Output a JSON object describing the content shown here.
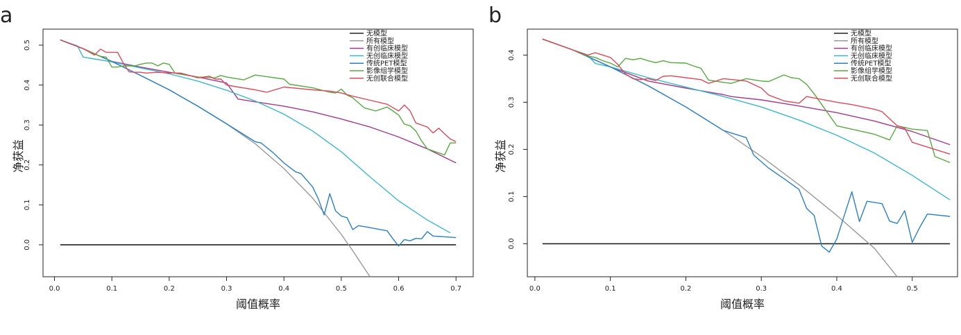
{
  "chart_data": [
    {
      "type": "line",
      "panel_label": "a",
      "xlabel": "阈值概率",
      "ylabel": "净获益",
      "xlim": [
        -0.02,
        0.73
      ],
      "ylim": [
        -0.08,
        0.54
      ],
      "xticks": [
        0.0,
        0.1,
        0.2,
        0.3,
        0.4,
        0.5,
        0.6,
        0.7
      ],
      "yticks": [
        0.0,
        0.1,
        0.2,
        0.3,
        0.4,
        0.5
      ],
      "grid": false,
      "legend_position": "top-right",
      "series": [
        {
          "name": "无模型",
          "color": "#222222",
          "x": [
            0.01,
            0.7
          ],
          "y": [
            0.0,
            0.0
          ]
        },
        {
          "name": "所有模型",
          "color": "#999999",
          "x": [
            0.01,
            0.05,
            0.1,
            0.15,
            0.2,
            0.25,
            0.3,
            0.35,
            0.4,
            0.45,
            0.5,
            0.52,
            0.55
          ],
          "y": [
            0.513,
            0.491,
            0.459,
            0.424,
            0.388,
            0.347,
            0.303,
            0.253,
            0.191,
            0.117,
            0.026,
            -0.015,
            -0.08
          ]
        },
        {
          "name": "有创临床模型",
          "color": "#a23a8b",
          "x": [
            0.01,
            0.05,
            0.1,
            0.15,
            0.2,
            0.25,
            0.3,
            0.32,
            0.35,
            0.4,
            0.45,
            0.5,
            0.55,
            0.6,
            0.65,
            0.7
          ],
          "y": [
            0.513,
            0.491,
            0.459,
            0.445,
            0.432,
            0.42,
            0.405,
            0.365,
            0.358,
            0.347,
            0.333,
            0.315,
            0.295,
            0.27,
            0.24,
            0.205
          ]
        },
        {
          "name": "无创临床模型",
          "color": "#3bb6cc",
          "x": [
            0.01,
            0.04,
            0.05,
            0.1,
            0.15,
            0.2,
            0.25,
            0.3,
            0.35,
            0.4,
            0.45,
            0.5,
            0.55,
            0.6,
            0.65,
            0.69
          ],
          "y": [
            0.513,
            0.498,
            0.47,
            0.458,
            0.443,
            0.428,
            0.41,
            0.387,
            0.36,
            0.327,
            0.285,
            0.233,
            0.17,
            0.11,
            0.062,
            0.03
          ]
        },
        {
          "name": "传统PET模型",
          "color": "#2a7fc6",
          "x": [
            0.01,
            0.05,
            0.1,
            0.15,
            0.2,
            0.25,
            0.3,
            0.35,
            0.36,
            0.38,
            0.4,
            0.42,
            0.43,
            0.45,
            0.46,
            0.47,
            0.48,
            0.49,
            0.5,
            0.51,
            0.52,
            0.53,
            0.55,
            0.58,
            0.59,
            0.6,
            0.61,
            0.62,
            0.63,
            0.64,
            0.65,
            0.66,
            0.7
          ],
          "y": [
            0.513,
            0.491,
            0.459,
            0.424,
            0.388,
            0.347,
            0.303,
            0.258,
            0.255,
            0.232,
            0.205,
            0.183,
            0.178,
            0.145,
            0.115,
            0.075,
            0.128,
            0.085,
            0.072,
            0.068,
            0.038,
            0.048,
            0.043,
            0.035,
            0.015,
            -0.003,
            0.013,
            0.01,
            0.016,
            0.015,
            0.033,
            0.022,
            0.018
          ]
        },
        {
          "name": "影像组学模型",
          "color": "#58a842",
          "x": [
            0.01,
            0.05,
            0.08,
            0.09,
            0.1,
            0.11,
            0.12,
            0.14,
            0.15,
            0.16,
            0.17,
            0.18,
            0.19,
            0.2,
            0.21,
            0.25,
            0.28,
            0.29,
            0.3,
            0.33,
            0.35,
            0.4,
            0.41,
            0.45,
            0.48,
            0.49,
            0.5,
            0.51,
            0.52,
            0.54,
            0.56,
            0.58,
            0.59,
            0.6,
            0.61,
            0.62,
            0.63,
            0.64,
            0.65,
            0.68,
            0.69,
            0.7
          ],
          "y": [
            0.513,
            0.491,
            0.472,
            0.47,
            0.445,
            0.445,
            0.448,
            0.448,
            0.452,
            0.455,
            0.455,
            0.448,
            0.455,
            0.452,
            0.43,
            0.42,
            0.418,
            0.424,
            0.42,
            0.413,
            0.425,
            0.415,
            0.402,
            0.393,
            0.382,
            0.38,
            0.39,
            0.375,
            0.368,
            0.343,
            0.335,
            0.345,
            0.335,
            0.325,
            0.302,
            0.298,
            0.285,
            0.26,
            0.24,
            0.225,
            0.255,
            0.255
          ]
        },
        {
          "name": "无创联合模型",
          "color": "#d94b5a",
          "x": [
            0.01,
            0.05,
            0.07,
            0.08,
            0.09,
            0.1,
            0.11,
            0.12,
            0.13,
            0.14,
            0.15,
            0.16,
            0.18,
            0.2,
            0.22,
            0.25,
            0.27,
            0.28,
            0.29,
            0.3,
            0.32,
            0.35,
            0.37,
            0.4,
            0.45,
            0.48,
            0.5,
            0.52,
            0.55,
            0.58,
            0.6,
            0.61,
            0.62,
            0.63,
            0.65,
            0.66,
            0.67,
            0.68,
            0.69,
            0.7
          ],
          "y": [
            0.513,
            0.491,
            0.475,
            0.49,
            0.482,
            0.482,
            0.482,
            0.455,
            0.433,
            0.432,
            0.432,
            0.43,
            0.432,
            0.43,
            0.43,
            0.418,
            0.422,
            0.415,
            0.415,
            0.4,
            0.395,
            0.388,
            0.382,
            0.395,
            0.388,
            0.385,
            0.38,
            0.372,
            0.362,
            0.352,
            0.335,
            0.35,
            0.335,
            0.305,
            0.295,
            0.28,
            0.292,
            0.278,
            0.265,
            0.258
          ]
        }
      ]
    },
    {
      "type": "line",
      "panel_label": "b",
      "xlabel": "阈值概率",
      "ylabel": "净获益",
      "xlim": [
        -0.01,
        0.56
      ],
      "ylim": [
        -0.07,
        0.455
      ],
      "xticks": [
        0.0,
        0.1,
        0.2,
        0.3,
        0.4,
        0.5
      ],
      "yticks": [
        0.0,
        0.1,
        0.2,
        0.3,
        0.4
      ],
      "grid": false,
      "legend_position": "top-right",
      "series": [
        {
          "name": "无模型",
          "color": "#222222",
          "x": [
            0.01,
            0.55
          ],
          "y": [
            0.0,
            0.0
          ]
        },
        {
          "name": "所有模型",
          "color": "#999999",
          "x": [
            0.01,
            0.05,
            0.1,
            0.15,
            0.2,
            0.25,
            0.3,
            0.35,
            0.4,
            0.45,
            0.48
          ],
          "y": [
            0.434,
            0.411,
            0.375,
            0.335,
            0.29,
            0.24,
            0.185,
            0.125,
            0.06,
            -0.01,
            -0.07
          ]
        },
        {
          "name": "有创临床模型",
          "color": "#a23a8b",
          "x": [
            0.01,
            0.05,
            0.1,
            0.15,
            0.2,
            0.25,
            0.26,
            0.3,
            0.35,
            0.4,
            0.45,
            0.5,
            0.55
          ],
          "y": [
            0.434,
            0.411,
            0.375,
            0.345,
            0.33,
            0.316,
            0.312,
            0.305,
            0.292,
            0.278,
            0.26,
            0.238,
            0.21
          ]
        },
        {
          "name": "无创临床模型",
          "color": "#3bb6cc",
          "x": [
            0.01,
            0.05,
            0.07,
            0.08,
            0.1,
            0.15,
            0.2,
            0.25,
            0.3,
            0.35,
            0.4,
            0.45,
            0.5,
            0.55
          ],
          "y": [
            0.434,
            0.411,
            0.4,
            0.382,
            0.375,
            0.352,
            0.332,
            0.312,
            0.29,
            0.262,
            0.23,
            0.192,
            0.145,
            0.093
          ]
        },
        {
          "name": "传统PET模型",
          "color": "#2a7fc6",
          "x": [
            0.01,
            0.05,
            0.1,
            0.15,
            0.2,
            0.25,
            0.28,
            0.29,
            0.31,
            0.33,
            0.35,
            0.36,
            0.37,
            0.38,
            0.39,
            0.4,
            0.41,
            0.42,
            0.43,
            0.44,
            0.46,
            0.47,
            0.48,
            0.49,
            0.5,
            0.51,
            0.52,
            0.55
          ],
          "y": [
            0.434,
            0.411,
            0.375,
            0.335,
            0.29,
            0.24,
            0.225,
            0.188,
            0.16,
            0.138,
            0.115,
            0.075,
            0.06,
            -0.005,
            -0.018,
            0.01,
            0.06,
            0.11,
            0.047,
            0.09,
            0.085,
            0.048,
            0.043,
            0.07,
            0.003,
            0.035,
            0.063,
            0.058
          ]
        },
        {
          "name": "影像组学模型",
          "color": "#58a842",
          "x": [
            0.01,
            0.05,
            0.07,
            0.08,
            0.09,
            0.1,
            0.11,
            0.12,
            0.13,
            0.14,
            0.15,
            0.16,
            0.17,
            0.18,
            0.2,
            0.21,
            0.22,
            0.23,
            0.25,
            0.26,
            0.28,
            0.3,
            0.31,
            0.33,
            0.34,
            0.35,
            0.36,
            0.37,
            0.4,
            0.45,
            0.47,
            0.48,
            0.5,
            0.52,
            0.53,
            0.55
          ],
          "y": [
            0.434,
            0.411,
            0.398,
            0.395,
            0.388,
            0.383,
            0.375,
            0.393,
            0.39,
            0.393,
            0.388,
            0.384,
            0.388,
            0.384,
            0.383,
            0.377,
            0.372,
            0.347,
            0.342,
            0.34,
            0.35,
            0.345,
            0.344,
            0.358,
            0.352,
            0.35,
            0.338,
            0.318,
            0.25,
            0.232,
            0.22,
            0.25,
            0.243,
            0.24,
            0.185,
            0.172
          ]
        },
        {
          "name": "无创联合模型",
          "color": "#d94b5a",
          "x": [
            0.01,
            0.05,
            0.07,
            0.08,
            0.09,
            0.1,
            0.11,
            0.12,
            0.13,
            0.14,
            0.15,
            0.16,
            0.17,
            0.18,
            0.2,
            0.22,
            0.23,
            0.24,
            0.25,
            0.28,
            0.3,
            0.31,
            0.33,
            0.35,
            0.36,
            0.4,
            0.42,
            0.45,
            0.46,
            0.48,
            0.49,
            0.5,
            0.51,
            0.55
          ],
          "y": [
            0.434,
            0.411,
            0.4,
            0.405,
            0.4,
            0.395,
            0.38,
            0.36,
            0.35,
            0.348,
            0.35,
            0.346,
            0.355,
            0.356,
            0.352,
            0.348,
            0.34,
            0.345,
            0.35,
            0.345,
            0.33,
            0.315,
            0.303,
            0.298,
            0.312,
            0.3,
            0.295,
            0.285,
            0.28,
            0.25,
            0.245,
            0.215,
            0.21,
            0.19
          ]
        }
      ]
    }
  ]
}
